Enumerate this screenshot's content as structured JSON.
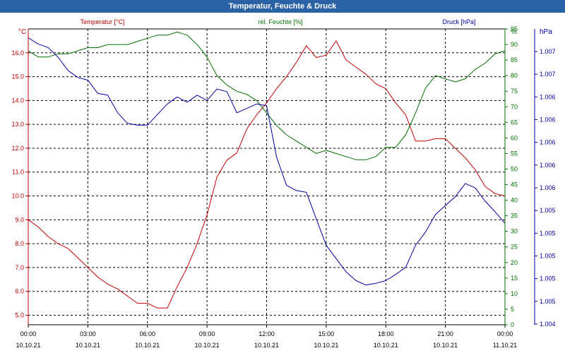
{
  "window": {
    "title": "Temperatur, Feuchte & Druck"
  },
  "chart_data": {
    "type": "line",
    "title": "Temperatur, Feuchte & Druck",
    "grid": true,
    "colors": {
      "temperature": "#c00000",
      "humidity": "#007000",
      "pressure": "#0000a0",
      "grid": "#000000"
    },
    "x_ticks": [
      {
        "time": "00:00",
        "date": "10.10.21"
      },
      {
        "time": "03:00",
        "date": "10.10.21"
      },
      {
        "time": "06:00",
        "date": "10.10.21"
      },
      {
        "time": "09:00",
        "date": "10.10.21"
      },
      {
        "time": "12:00",
        "date": "10.10.21"
      },
      {
        "time": "15:00",
        "date": "10.10.21"
      },
      {
        "time": "18:00",
        "date": "10.10.21"
      },
      {
        "time": "21:00",
        "date": "10.10.21"
      },
      {
        "time": "00:00",
        "date": "11.10.21"
      }
    ],
    "axes": {
      "temperature": {
        "unit": "°C",
        "ylim": [
          4.6,
          17.0
        ],
        "ticks": [
          "16.0",
          "15.0",
          "14.0",
          "13.0",
          "12.0",
          "11.0",
          "10.0",
          "9.0",
          "8.0",
          "7.0",
          "6.0",
          "5.0"
        ]
      },
      "humidity": {
        "unit": "%",
        "ylim": [
          0,
          95
        ],
        "ticks": [
          "95",
          "90",
          "85",
          "80",
          "75",
          "70",
          "65",
          "60",
          "55",
          "50",
          "45",
          "40",
          "35",
          "30",
          "25",
          "20",
          "15",
          "10",
          "5",
          "0"
        ]
      },
      "pressure": {
        "unit": "hPa",
        "ticks": [
          "1.007",
          "1.007",
          "1.006",
          "1.006",
          "1.006",
          "1.006",
          "1.006",
          "1.005",
          "1.005",
          "1.005",
          "1.005",
          "1.005",
          "1.004"
        ]
      }
    },
    "series": [
      {
        "name": "Temperatur [°C]",
        "axis": "temperature",
        "x_hours": [
          0,
          0.5,
          1,
          1.5,
          2,
          2.5,
          3,
          3.5,
          4,
          4.5,
          5,
          5.5,
          6,
          6.5,
          7,
          7.5,
          8,
          8.5,
          9,
          9.5,
          10,
          10.5,
          11,
          11.5,
          12,
          12.5,
          13,
          13.5,
          14,
          14.5,
          15,
          15.5,
          16,
          16.5,
          17,
          17.5,
          18,
          18.5,
          19,
          19.5,
          20,
          20.5,
          21,
          21.5,
          22,
          22.5,
          23,
          23.5,
          24
        ],
        "values": [
          9.0,
          8.7,
          8.3,
          8.0,
          7.8,
          7.4,
          7.0,
          6.6,
          6.3,
          6.1,
          5.8,
          5.5,
          5.5,
          5.3,
          5.3,
          6.2,
          7.0,
          8.0,
          9.2,
          10.8,
          11.5,
          11.8,
          12.8,
          13.4,
          13.9,
          14.5,
          15.0,
          15.6,
          16.3,
          15.8,
          15.9,
          16.5,
          15.7,
          15.4,
          15.1,
          14.7,
          14.5,
          13.9,
          13.4,
          12.3,
          12.3,
          12.4,
          12.4,
          12.0,
          11.6,
          11.1,
          10.4,
          10.1,
          10.0
        ]
      },
      {
        "name": "rel. Feuchte [%]",
        "axis": "humidity",
        "x_hours": [
          0,
          0.5,
          1,
          1.5,
          2,
          2.5,
          3,
          3.5,
          4,
          4.5,
          5,
          5.5,
          6,
          6.5,
          7,
          7.5,
          8,
          8.5,
          9,
          9.5,
          10,
          10.5,
          11,
          11.5,
          12,
          12.5,
          13,
          13.5,
          14,
          14.5,
          15,
          15.5,
          16,
          16.5,
          17,
          17.5,
          18,
          18.5,
          19,
          19.5,
          20,
          20.5,
          21,
          21.5,
          22,
          22.5,
          23,
          23.5,
          24
        ],
        "values": [
          88,
          86,
          86,
          87,
          87,
          88,
          89,
          89,
          90,
          90,
          90,
          91,
          92,
          93,
          93,
          94,
          93,
          90,
          86,
          80,
          77,
          75,
          74,
          72,
          68,
          64,
          61,
          59,
          57,
          55,
          56,
          55,
          54,
          53,
          53,
          54,
          57,
          57,
          61,
          68,
          76,
          80,
          79,
          78,
          79,
          82,
          84,
          87,
          88
        ]
      },
      {
        "name": "Druck [hPa]",
        "axis": "pressure",
        "x_hours": [
          0,
          0.5,
          1,
          1.5,
          2,
          2.5,
          3,
          3.5,
          4,
          4.5,
          5,
          5.5,
          6,
          6.5,
          7,
          7.5,
          8,
          8.5,
          9,
          9.5,
          10,
          10.5,
          11,
          11.5,
          12,
          12.5,
          13,
          13.5,
          14,
          14.5,
          15,
          15.5,
          16,
          16.5,
          17,
          17.5,
          18,
          18.5,
          19,
          19.5,
          20,
          20.5,
          21,
          21.5,
          22,
          22.5,
          23,
          23.5,
          24
        ],
        "values": [
          1.00725,
          1.00718,
          1.00714,
          1.00703,
          1.00688,
          1.0068,
          1.00677,
          1.00662,
          1.0066,
          1.0064,
          1.00628,
          1.00626,
          1.00626,
          1.00638,
          1.0065,
          1.00658,
          1.00652,
          1.0066,
          1.00654,
          1.00667,
          1.00664,
          1.0064,
          1.00645,
          1.0065,
          1.00648,
          1.0059,
          1.00558,
          1.00552,
          1.0055,
          1.0052,
          1.0049,
          1.00475,
          1.0046,
          1.0045,
          1.00445,
          1.00447,
          1.0045,
          1.00457,
          1.00465,
          1.0049,
          1.00505,
          1.00525,
          1.00535,
          1.00545,
          1.0056,
          1.00555,
          1.0054,
          1.00528,
          1.00515
        ]
      }
    ]
  }
}
